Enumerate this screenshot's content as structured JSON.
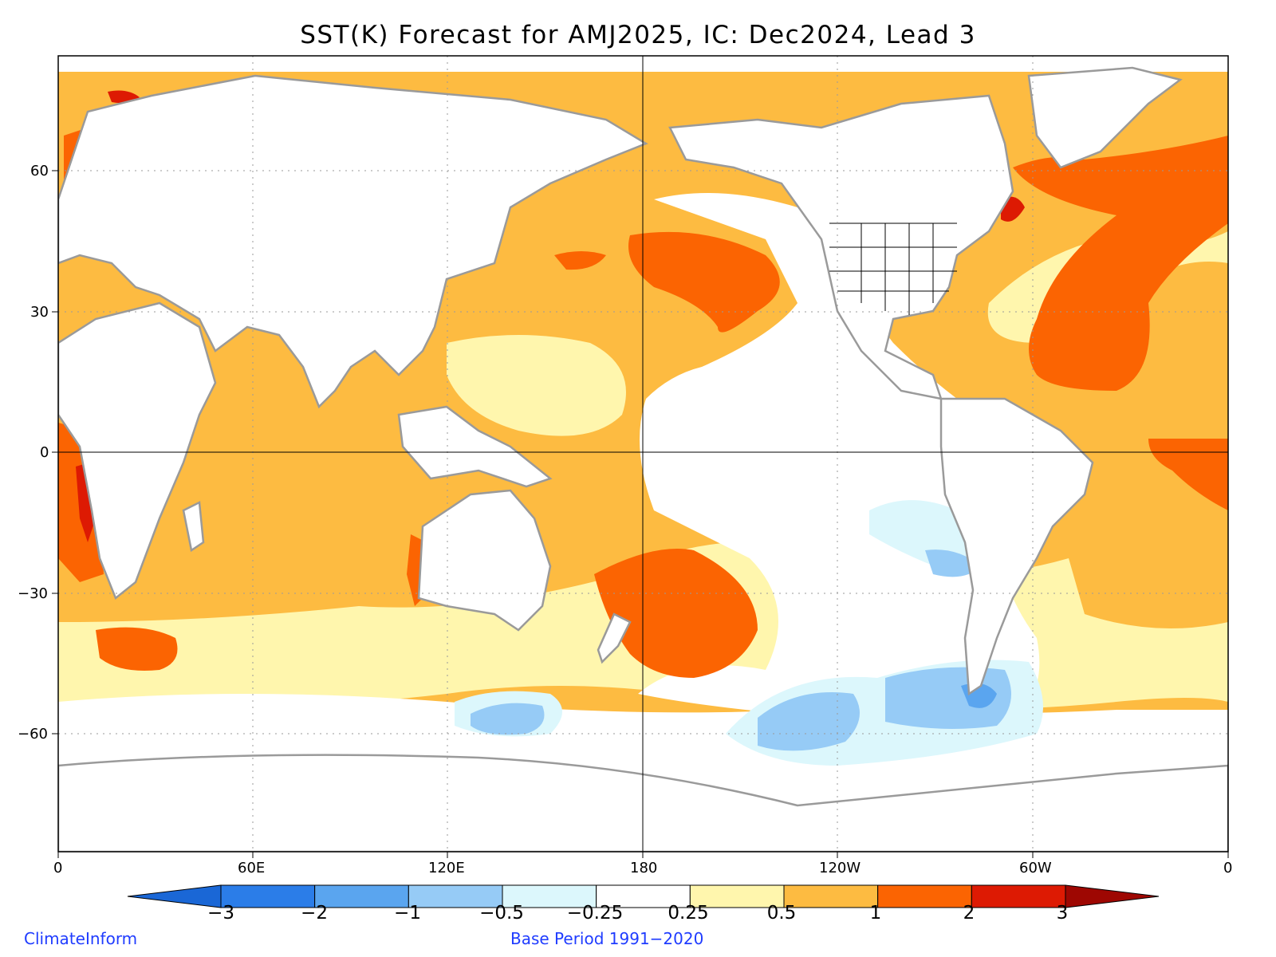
{
  "title": "SST(K) Forecast for AMJ2025, IC: Dec2024, Lead 3",
  "y_axis": {
    "labels": [
      "60",
      "30",
      "0",
      "−30",
      "−60"
    ]
  },
  "x_axis": {
    "labels": [
      "0",
      "60E",
      "120E",
      "180",
      "120W",
      "60W",
      "0"
    ]
  },
  "colorbar": {
    "labels": [
      "−3",
      "−2",
      "−1",
      "−0.5",
      "−0.25",
      "0.25",
      "0.5",
      "1",
      "2",
      "3"
    ],
    "colors": [
      "#1a67d6",
      "#2b7de8",
      "#5aa5ef",
      "#96cbf6",
      "#dcf7fc",
      "#ffffff",
      "#fff6ad",
      "#fdbb41",
      "#fb6402",
      "#dd1a03",
      "#9e0702"
    ]
  },
  "credits": {
    "left": "ClimateInform",
    "center": "Base Period 1991−2020"
  },
  "colors": {
    "land": "#ffffff",
    "coast": "#9a9a9a",
    "ocean_base": "#fdbb41"
  }
}
